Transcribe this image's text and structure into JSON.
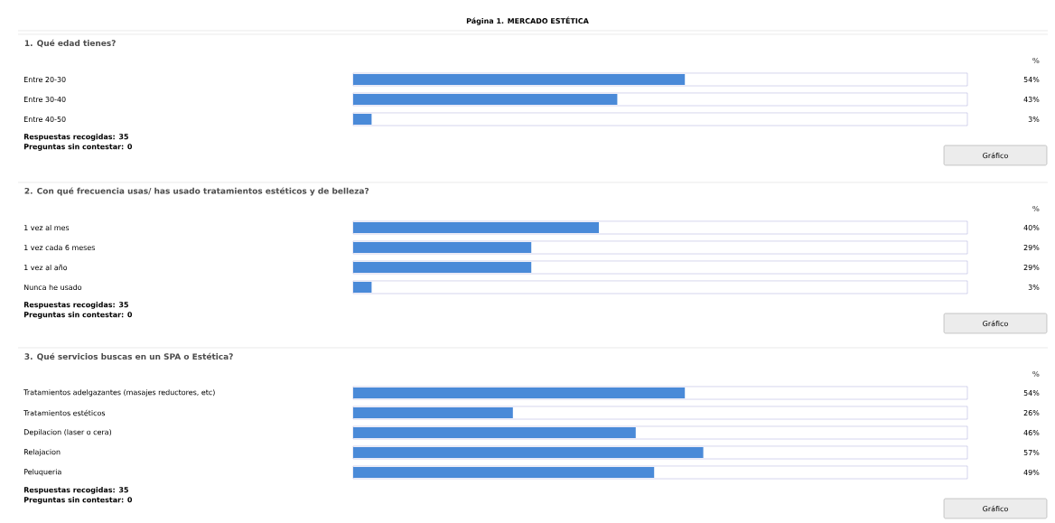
{
  "chart_data": [
    {
      "type": "bar",
      "orientation": "horizontal",
      "title": "Página 1. MERCADO ESTÉTICA",
      "subtitle": "1. Qué edad tienes?",
      "categories": [
        "Entre 20-30",
        "Entre 30-40",
        "Entre 40-50"
      ],
      "values": [
        54,
        43,
        3
      ],
      "value_labels": [
        "54%",
        "43%",
        "3%"
      ],
      "color": "#4a8ad8",
      "xlim": [
        0,
        100
      ],
      "tick_labels": "y",
      "annotations": [
        "%",
        "Respuestas recogidas: 35",
        "Preguntas sin contestar: 0",
        "Gráfico"
      ]
    },
    {
      "type": "bar",
      "orientation": "horizontal",
      "subtitle": "2. Con qué frecuencia usas/ has usado tratamientos estéticos y de belleza?",
      "categories": [
        "1 vez al mes",
        "1 vez cada 6 meses",
        "1 vez al año",
        "Nunca he usado"
      ],
      "values": [
        40,
        29,
        29,
        3
      ],
      "value_labels": [
        "40%",
        "29%",
        "29%",
        "3%"
      ],
      "color": "#4a8ad8",
      "xlim": [
        0,
        100
      ],
      "tick_labels": "y",
      "annotations": [
        "%",
        "Respuestas recogidas: 35",
        "Preguntas sin contestar: 0",
        "Gráfico"
      ]
    },
    {
      "type": "bar",
      "orientation": "horizontal",
      "subtitle": "3. Qué servicios buscas en un SPA o Estética?",
      "categories": [
        "Tratamientos adelgazantes (masajes reductores, etc)",
        "Tratamientos estéticos",
        "Depilacion (laser o cera)",
        "Relajacion",
        "Peluqueria"
      ],
      "values": [
        54,
        26,
        46,
        57,
        49
      ],
      "value_labels": [
        "54%",
        "26%",
        "46%",
        "57%",
        "49%"
      ],
      "color": "#4a8ad8",
      "xlim": [
        0,
        100
      ],
      "tick_labels": "y",
      "annotations": [
        "%",
        "Respuestas recogidas: 35",
        "Preguntas sin contestar: 0",
        "Gráfico"
      ]
    }
  ]
}
